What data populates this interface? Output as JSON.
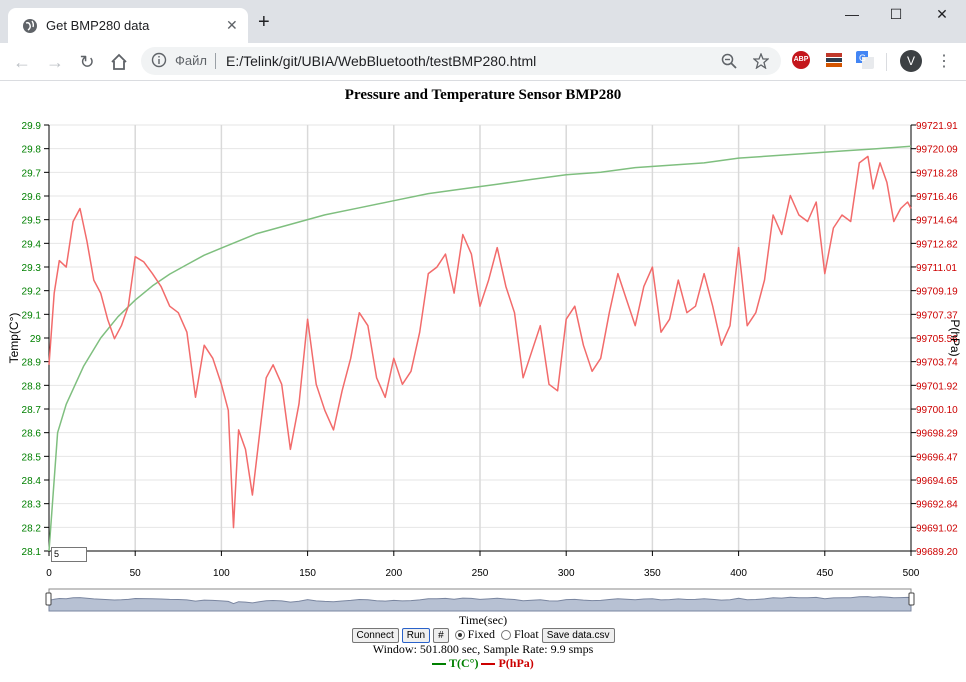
{
  "browser": {
    "tab_title": "Get BMP280 data",
    "omnibox_label": "Файл",
    "url": "E:/Telink/git/UBIA/WebBluetooth/testBMP280.html",
    "avatar_letter": "V",
    "window_buttons": {
      "minimize": "—",
      "maximize": "☐",
      "close": "✕"
    },
    "new_tab": "+",
    "tab_close": "✕",
    "icons": [
      "globe-icon",
      "back-icon",
      "forward-icon",
      "reload-icon",
      "home-icon",
      "info-icon",
      "zoom-icon",
      "star-icon",
      "adblock-icon",
      "extension-icon",
      "translate-icon",
      "menu-icon"
    ],
    "adblock_label": "ABP"
  },
  "page": {
    "title": "Pressure and Temperature Sensor BMP280",
    "x_axis_title": "Time(sec)",
    "left_axis_title": "Temp(C°)",
    "right_axis_title": "P(hPa)",
    "window_input_value": "5",
    "buttons": {
      "connect": "Connect",
      "run": "Run",
      "hash": "#",
      "save": "Save data.csv"
    },
    "radios": {
      "fixed": "Fixed",
      "float": "Float",
      "selected": "Fixed"
    },
    "status": "Window: 501.800 sec, Sample Rate: 9.9 smps",
    "legend": {
      "temp": "T(C°)",
      "pressure": "P(hPa)"
    }
  },
  "chart_data": {
    "type": "line",
    "title": "Pressure and Temperature Sensor BMP280",
    "xlabel": "Time(sec)",
    "x_ticks": [
      0,
      50,
      100,
      150,
      200,
      250,
      300,
      350,
      400,
      450,
      500
    ],
    "xlim": [
      0,
      500
    ],
    "y_left": {
      "label": "Temp(C°)",
      "ticks": [
        "28.1",
        "28.2",
        "28.3",
        "28.4",
        "28.5",
        "28.6",
        "28.7",
        "28.8",
        "28.9",
        "29",
        "29.1",
        "29.2",
        "29.3",
        "29.4",
        "29.5",
        "29.6",
        "29.7",
        "29.8",
        "29.9"
      ],
      "lim": [
        28.1,
        29.9
      ]
    },
    "y_right": {
      "label": "P(hPa)",
      "ticks": [
        "99689.20",
        "99691.02",
        "99692.84",
        "99694.65",
        "99696.47",
        "99698.29",
        "99700.10",
        "99701.92",
        "99703.74",
        "99705.56",
        "99707.37",
        "99709.19",
        "99711.01",
        "99712.82",
        "99714.64",
        "99716.46",
        "99718.28",
        "99720.09",
        "99721.91"
      ],
      "lim": [
        99689.2,
        99721.91
      ]
    },
    "colors": {
      "temp": "#7fbf7f",
      "pressure": "#f26b6b",
      "temp_axis": "#008000",
      "pressure_axis": "#cc0000"
    },
    "series": [
      {
        "name": "T(C°)",
        "axis": "left",
        "x": [
          0,
          5,
          10,
          20,
          30,
          40,
          50,
          60,
          70,
          80,
          90,
          100,
          120,
          140,
          160,
          180,
          200,
          220,
          240,
          260,
          280,
          300,
          320,
          340,
          360,
          380,
          400,
          420,
          440,
          460,
          480,
          500
        ],
        "y": [
          28.1,
          28.6,
          28.72,
          28.88,
          29.0,
          29.09,
          29.16,
          29.22,
          29.27,
          29.31,
          29.35,
          29.38,
          29.44,
          29.48,
          29.52,
          29.55,
          29.58,
          29.61,
          29.63,
          29.65,
          29.67,
          29.69,
          29.7,
          29.72,
          29.73,
          29.74,
          29.76,
          29.77,
          29.78,
          29.79,
          29.8,
          29.81
        ]
      },
      {
        "name": "P(hPa)",
        "axis": "right",
        "x": [
          0,
          3,
          6,
          10,
          14,
          18,
          22,
          26,
          30,
          34,
          38,
          42,
          46,
          50,
          55,
          60,
          65,
          70,
          75,
          80,
          85,
          90,
          95,
          100,
          104,
          107,
          110,
          114,
          118,
          122,
          126,
          130,
          135,
          140,
          145,
          150,
          155,
          160,
          165,
          170,
          175,
          180,
          185,
          190,
          195,
          200,
          205,
          210,
          215,
          220,
          225,
          230,
          235,
          240,
          245,
          250,
          255,
          260,
          265,
          270,
          275,
          280,
          285,
          290,
          295,
          300,
          305,
          310,
          315,
          320,
          325,
          330,
          335,
          340,
          345,
          350,
          355,
          360,
          365,
          370,
          375,
          380,
          385,
          390,
          395,
          400,
          405,
          410,
          415,
          420,
          425,
          430,
          435,
          440,
          445,
          450,
          455,
          460,
          465,
          470,
          475,
          478,
          482,
          486,
          490,
          494,
          498,
          500
        ],
        "y": [
          99703.5,
          99709.0,
          99711.5,
          99711.0,
          99714.5,
          99715.5,
          99713.0,
          99710.0,
          99709.0,
          99707.0,
          99705.5,
          99706.5,
          99708.0,
          99711.8,
          99711.4,
          99710.5,
          99709.5,
          99708.0,
          99707.5,
          99706.0,
          99701.0,
          99705.0,
          99704.0,
          99702.0,
          99700.0,
          99691.0,
          99698.5,
          99697.0,
          99693.5,
          99698.0,
          99702.5,
          99703.5,
          99702.0,
          99697.0,
          99700.5,
          99707.0,
          99702.0,
          99700.0,
          99698.5,
          99701.5,
          99704.0,
          99707.5,
          99706.5,
          99702.5,
          99701.0,
          99704.0,
          99702.0,
          99703.0,
          99706.0,
          99710.5,
          99711.0,
          99712.0,
          99709.0,
          99713.5,
          99712.0,
          99708.0,
          99710.0,
          99712.5,
          99709.5,
          99707.5,
          99702.5,
          99704.5,
          99706.5,
          99702.0,
          99701.5,
          99707.0,
          99708.0,
          99705.0,
          99703.0,
          99704.0,
          99707.5,
          99710.5,
          99708.5,
          99706.5,
          99709.5,
          99711.0,
          99706.0,
          99707.0,
          99710.0,
          99707.5,
          99708.0,
          99710.5,
          99708.0,
          99705.0,
          99706.5,
          99712.5,
          99706.5,
          99707.5,
          99710.0,
          99715.0,
          99713.5,
          99716.5,
          99715.0,
          99714.5,
          99716.0,
          99710.5,
          99714.0,
          99715.0,
          99714.5,
          99719.0,
          99719.5,
          99717.0,
          99719.0,
          99717.5,
          99714.5,
          99715.5,
          99716.0,
          99715.5
        ]
      }
    ],
    "grid": true,
    "legend_placement": "bottom-center"
  }
}
